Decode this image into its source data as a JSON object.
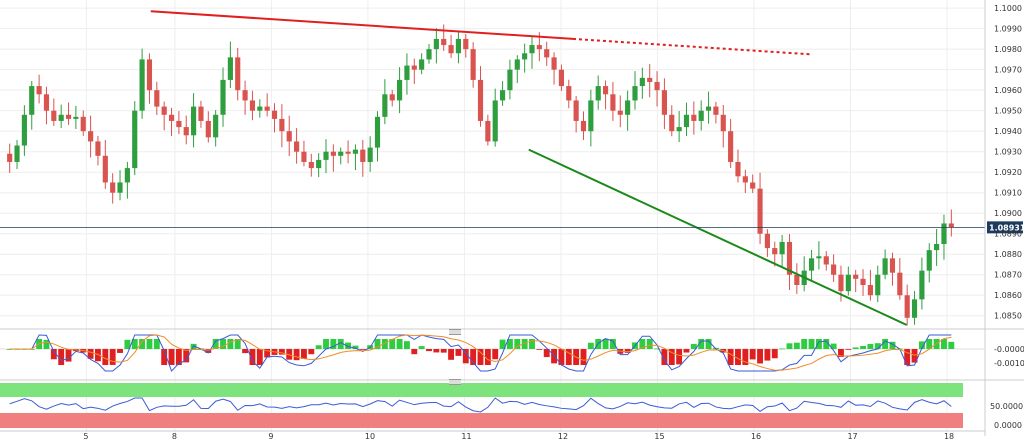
{
  "chart_data": [
    {
      "type": "candlestick",
      "instrument_last_price": "1.08931",
      "y_ticks": [
        "1.1000",
        "1.0990",
        "1.0980",
        "1.0970",
        "1.0960",
        "1.0950",
        "1.0940",
        "1.0930",
        "1.0920",
        "1.0910",
        "1.0900",
        "1.0890",
        "1.0880",
        "1.0870",
        "1.0860",
        "1.0850"
      ],
      "x_ticks": [
        "5",
        "8",
        "9",
        "10",
        "11",
        "12",
        "15",
        "16",
        "17",
        "18"
      ],
      "ylim": [
        1.0845,
        1.1003
      ],
      "x_range": [
        0,
        118
      ],
      "x_tick_index": [
        10,
        21,
        33,
        45,
        57,
        69,
        81,
        93,
        105,
        117
      ],
      "last_price_value": 1.08931,
      "grid": true,
      "colors": {
        "up": "#2e9e3e",
        "down": "#d9534f",
        "resistance": "#e02020",
        "support": "#1a8a1a",
        "price_line": "#1c3b5e",
        "tag_bg": "#1c3b5e"
      },
      "annotations": [
        {
          "name": "resistance-line",
          "style": "solid",
          "from": [
            18,
            1.09985
          ],
          "to": [
            70.5,
            1.0985
          ]
        },
        {
          "name": "resistance-extension",
          "style": "dotted",
          "from": [
            70.5,
            1.0985
          ],
          "to": [
            100,
            1.09775
          ]
        },
        {
          "name": "support-line",
          "style": "solid",
          "from": [
            65,
            1.0931
          ],
          "to": [
            112,
            1.08455
          ]
        }
      ],
      "closes": [
        1.0925,
        1.0933,
        1.0948,
        1.0962,
        1.0958,
        1.095,
        1.0945,
        1.0948,
        1.0946,
        1.0947,
        1.094,
        1.0935,
        1.0928,
        1.0915,
        1.091,
        1.0915,
        1.0922,
        1.095,
        1.0975,
        1.096,
        1.0952,
        1.0948,
        1.0945,
        1.0942,
        1.0938,
        1.0952,
        1.0945,
        1.0937,
        1.0948,
        1.0965,
        1.0976,
        1.096,
        1.0955,
        1.095,
        1.0952,
        1.095,
        1.0946,
        1.094,
        1.0935,
        1.093,
        1.0925,
        1.0922,
        1.0926,
        1.093,
        1.0928,
        1.093,
        1.0929,
        1.0931,
        1.0925,
        1.0932,
        1.0947,
        1.0958,
        1.0955,
        1.0965,
        1.0972,
        1.097,
        1.0975,
        1.098,
        1.0985,
        1.0982,
        1.0978,
        1.0985,
        1.098,
        1.0965,
        1.0945,
        1.0935,
        1.0955,
        1.096,
        1.097,
        1.0975,
        1.0978,
        1.0982,
        1.098,
        1.0976,
        1.097,
        1.0962,
        1.0955,
        1.0945,
        1.094,
        1.0955,
        1.0962,
        1.0958,
        1.095,
        1.0948,
        1.0955,
        1.0962,
        1.0966,
        1.0964,
        1.096,
        1.0948,
        1.094,
        1.0942,
        1.0948,
        1.0945,
        1.095,
        1.0952,
        1.0948,
        1.094,
        1.0925,
        1.0918,
        1.0915,
        1.0912,
        1.089,
        1.0883,
        1.088,
        1.0886,
        1.087,
        1.0865,
        1.0872,
        1.0878,
        1.0879,
        1.0875,
        1.087,
        1.0862,
        1.087,
        1.0868,
        1.0865,
        1.086,
        1.087,
        1.0878,
        1.0871,
        1.086,
        1.0849,
        1.0858,
        1.0872,
        1.0882,
        1.0885,
        1.0895,
        1.08931
      ]
    },
    {
      "type": "histogram-oscillator",
      "y_ticks": [
        "-0.0000",
        "-0.0010"
      ],
      "colors": {
        "positive": "#2ecc40",
        "negative": "#e02020",
        "macd": "#3a5bd9",
        "signal": "#f28c28"
      }
    },
    {
      "type": "line-oscillator",
      "y_ticks": [
        "50.0000",
        "0.0000"
      ],
      "colors": {
        "line": "#3a5bd9",
        "upper_zone": "#7de37d",
        "lower_zone": "#f07f7f"
      }
    }
  ]
}
